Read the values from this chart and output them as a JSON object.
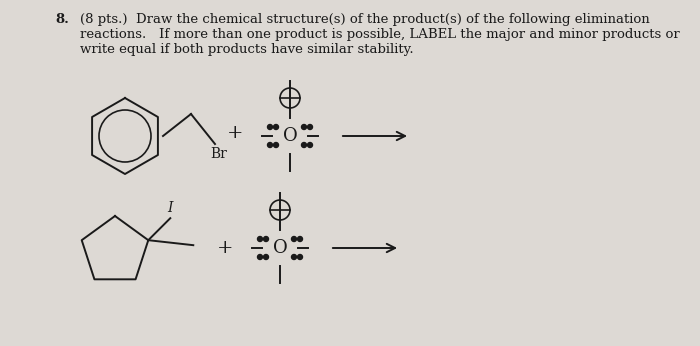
{
  "bg_color": "#ddd9d4",
  "text_color": "#1a1a1a",
  "title_number": "8.",
  "title_pts": "(8 pts.)",
  "title_line1": "  Draw the chemical structure(s) of the product(s) of the following elimination",
  "title_line2": "reactions.   If more than one product is possible, LABEL the major and minor products or",
  "title_line3": "write equal if both products have similar stability.",
  "label_Br": "Br",
  "label_I": "I",
  "plus_sign": "+",
  "font_size_title": 9.5,
  "font_size_struct": 11
}
